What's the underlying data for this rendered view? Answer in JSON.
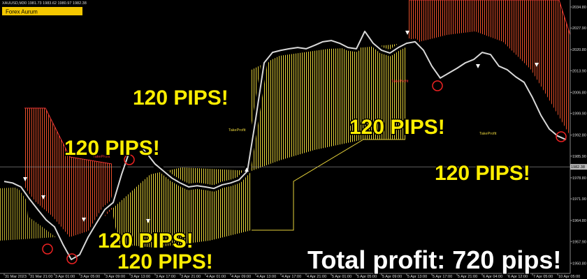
{
  "chart_data": {
    "type": "line",
    "title": "XAUUSD,M30  1981.73 1983.62 1980.97 1982.38",
    "badge": "Forex Aurum",
    "color": "#d9d9d9",
    "categories": [
      "31 Mar 2023",
      null,
      null,
      "31 Mar 21:00",
      null,
      null,
      "3 Apr 01:00",
      null,
      null,
      "3 Apr 05:00",
      null,
      null,
      "3 Apr 09:00",
      null,
      null,
      "3 Apr 13:00",
      null,
      null,
      "3 Apr 17:00",
      null,
      null,
      "3 Apr 21:00",
      null,
      null,
      "4 Apr 01:00",
      null,
      null,
      "4 Apr 09:00",
      null,
      null,
      "4 Apr 13:00",
      null,
      null,
      "4 Apr 17:00",
      null,
      null,
      "4 Apr 21:00",
      null,
      null,
      "5 Apr 01:00",
      null,
      null,
      "5 Apr 05:00",
      null,
      null,
      "5 Apr 09:00",
      null,
      null,
      "5 Apr 13:00",
      null,
      null,
      "5 Apr 17:00",
      null,
      null,
      "5 Apr 21:00",
      null,
      null,
      "6 Apr 04:00",
      null,
      null,
      "6 Apr 12:00",
      null,
      null,
      "7 Apr 05:00",
      null,
      null,
      "10 Apr 05:00",
      null
    ],
    "values": [
      1977.6,
      1977.1,
      1975.8,
      1971.9,
      1968.4,
      1965.0,
      1962.7,
      1957.0,
      1952.0,
      1953.6,
      1959.3,
      1963.9,
      1968.4,
      1970.7,
      1979.9,
      1987.9,
      1990.2,
      1986.8,
      1983.3,
      1981.0,
      1978.7,
      1977.1,
      1975.8,
      1976.2,
      1975.8,
      1975.3,
      1976.5,
      1977.1,
      1978.1,
      1981.0,
      1998.2,
      2016.5,
      2019.9,
      2020.6,
      2021.1,
      2021.5,
      2021.1,
      2022.2,
      2023.4,
      2023.8,
      2022.9,
      2021.5,
      2021.1,
      2026.8,
      2022.9,
      2020.6,
      2019.7,
      2021.5,
      2022.9,
      2023.4,
      2020.6,
      2015.4,
      2011.5,
      2013.1,
      2014.7,
      2016.5,
      2017.6,
      2019.9,
      2019.2,
      2015.4,
      2014.2,
      2011.9,
      2010.1,
      2005.1,
      1999.3,
      1994.8,
      1992.5,
      1991.3
    ],
    "ylim": [
      1947.9,
      2034.8
    ],
    "yticks": [
      {
        "value": 2034.8,
        "label": "2034.80"
      },
      {
        "value": 2027.9,
        "label": "2027.90"
      },
      {
        "value": 2020.8,
        "label": "2020.80"
      },
      {
        "value": 2013.9,
        "label": "2013.90"
      },
      {
        "value": 2006.8,
        "label": "2006.80"
      },
      {
        "value": 1999.9,
        "label": "1999.90"
      },
      {
        "value": 1992.8,
        "label": "1992.80"
      },
      {
        "value": 1985.9,
        "label": "1985.90"
      },
      {
        "value": 1978.8,
        "label": "1978.80"
      },
      {
        "value": 1971.9,
        "label": "1971.90"
      },
      {
        "value": 1964.8,
        "label": "1964.80"
      },
      {
        "value": 1957.9,
        "label": "1957.90"
      },
      {
        "value": 1950.8,
        "label": "1950.80"
      }
    ],
    "current_price": {
      "value": 1982.38,
      "label": "1982.38"
    },
    "take_profit_labels": [
      "TakeProfit",
      "TakeProfit",
      "TakeProfit",
      "TakeProfit"
    ],
    "annotations": [
      "120 PIPS!",
      "120 PIPS!",
      "120 PIPS!",
      "120 PIPS!",
      "120 PIPS!",
      "120 PIPS!"
    ],
    "total_profit": "Total profit: 720 pips!"
  }
}
